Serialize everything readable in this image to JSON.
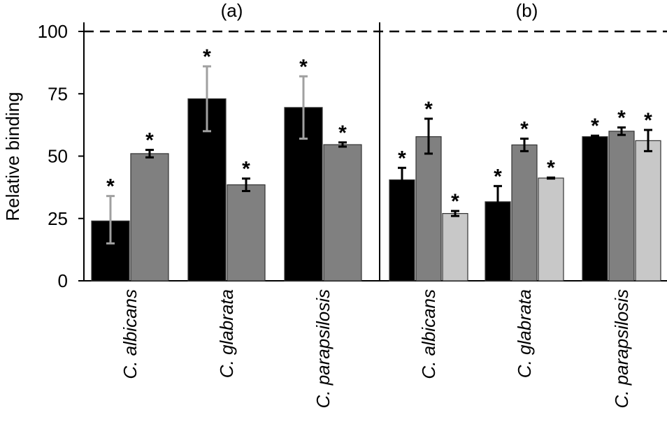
{
  "chart_data": {
    "type": "bar",
    "ylabel": "Relative binding",
    "ylim": [
      0,
      100
    ],
    "yticks": [
      "0",
      "25",
      "50",
      "75",
      "100"
    ],
    "reference_line": 100,
    "grid": false,
    "significance_marker": "*",
    "colors": {
      "series1": "#000000",
      "series2": "#808080",
      "series3": "#c8c8c8",
      "errbar_black": "#000000",
      "errbar_gray": "#a0a0a0"
    },
    "panels": [
      {
        "title": "(a)",
        "categories": [
          "C. albicans",
          "C. glabrata",
          "C. parapsilosis"
        ],
        "series": [
          {
            "values": [
              24,
              73,
              69.5
            ],
            "err_low": [
              15,
              60,
              57
            ],
            "err_high": [
              34,
              86,
              82
            ],
            "errbar_color": "#a0a0a0",
            "color": "#000000"
          },
          {
            "values": [
              51,
              38.5,
              54.6
            ],
            "err_low": [
              49.5,
              36,
              53.8
            ],
            "err_high": [
              52.5,
              41,
              55.5
            ],
            "errbar_color": "#000000",
            "color": "#808080"
          }
        ]
      },
      {
        "title": "(b)",
        "categories": [
          "C. albicans",
          "C. glabrata",
          "C. parapsilosis"
        ],
        "series": [
          {
            "values": [
              40.5,
              31.7,
              57.8
            ],
            "err_low": [
              35.5,
              25,
              57.5
            ],
            "err_high": [
              45.3,
              38,
              58.2
            ],
            "errbar_color": "#000000",
            "color": "#000000"
          },
          {
            "values": [
              57.8,
              54.5,
              60
            ],
            "err_low": [
              51,
              52,
              58.5
            ],
            "err_high": [
              65,
              57,
              61.5
            ],
            "errbar_color": "#000000",
            "color": "#808080"
          },
          {
            "values": [
              27,
              41.2,
              56.2
            ],
            "err_low": [
              26,
              41,
              52
            ],
            "err_high": [
              28,
              41.4,
              60.5
            ],
            "errbar_color": "#000000",
            "color": "#c8c8c8"
          }
        ]
      }
    ]
  }
}
